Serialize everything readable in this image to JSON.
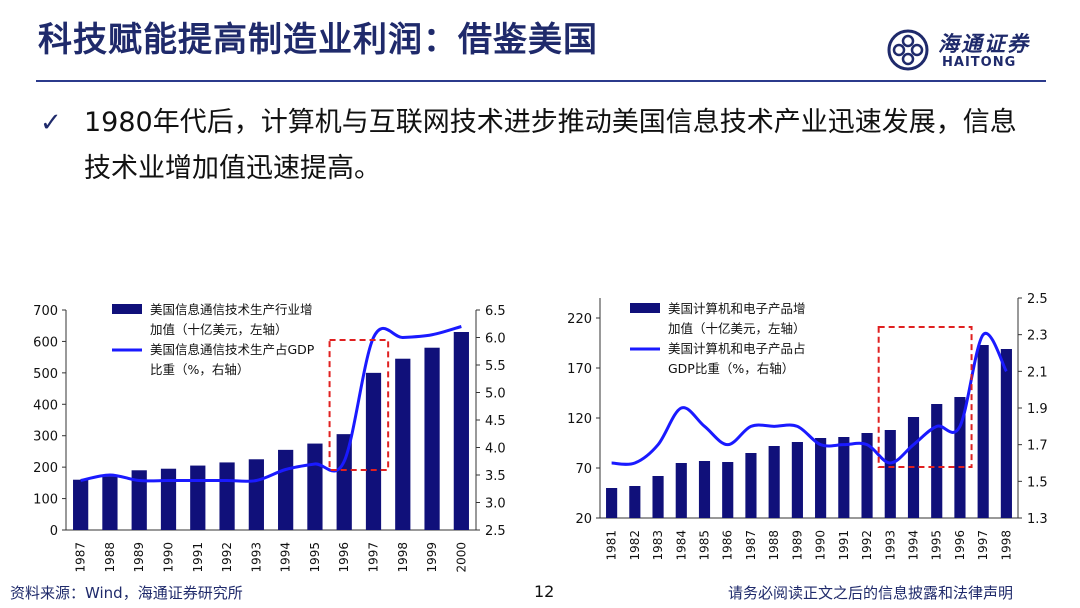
{
  "title": "科技赋能提高制造业利润：借鉴美国",
  "logo": {
    "cn": "海通证券",
    "en": "HAITONG",
    "icon": "haitong-logo-icon"
  },
  "bullet": {
    "icon": "check-icon",
    "text": "1980年代后，计算机与互联网技术进步推动美国信息技术产业迅速发展，信息技术业增加值迅速提高。"
  },
  "footer": {
    "source": "资料来源：Wind，海通证券研究所",
    "page": "12",
    "disclaimer": "请务必阅读正文之后的信息披露和法律声明"
  },
  "colors": {
    "accent": "#1f2a6b",
    "bar": "#10107a",
    "line": "#1a1aff",
    "highlight": "#e02020"
  },
  "chart_data": [
    {
      "type": "bar",
      "categories": [
        "1987",
        "1988",
        "1989",
        "1990",
        "1991",
        "1992",
        "1993",
        "1994",
        "1995",
        "1996",
        "1997",
        "1998",
        "1999",
        "2000"
      ],
      "series": [
        {
          "name": "美国信息通信技术生产行业增加值（十亿美元，左轴）",
          "type": "bar",
          "axis": "left",
          "values": [
            160,
            170,
            190,
            195,
            205,
            215,
            225,
            255,
            275,
            305,
            500,
            545,
            580,
            630
          ]
        },
        {
          "name": "美国信息通信技术生产占GDP比重（%，右轴）",
          "type": "line",
          "axis": "right",
          "values": [
            3.4,
            3.5,
            3.4,
            3.4,
            3.4,
            3.4,
            3.4,
            3.6,
            3.7,
            3.75,
            6.0,
            6.0,
            6.05,
            6.2
          ]
        }
      ],
      "legend_lines": [
        [
          "美国信息通信技术生产行业增",
          "加值（十亿美元，左轴）"
        ],
        [
          "美国信息通信技术生产占GDP",
          "比重（%，右轴）"
        ]
      ],
      "left_axis": {
        "min": 0,
        "max": 700,
        "ticks": [
          "0",
          "100",
          "200",
          "300",
          "400",
          "500",
          "600",
          "700"
        ]
      },
      "right_axis": {
        "min": 2.5,
        "max": 6.5,
        "ticks": [
          "2.5",
          "3.0",
          "3.5",
          "4.0",
          "4.5",
          "5.0",
          "5.5",
          "6.0",
          "6.5"
        ]
      },
      "highlight": [
        "1996",
        "1997"
      ],
      "legend": "top-left"
    },
    {
      "type": "bar",
      "categories": [
        "1981",
        "1982",
        "1983",
        "1984",
        "1985",
        "1986",
        "1987",
        "1988",
        "1989",
        "1990",
        "1991",
        "1992",
        "1993",
        "1994",
        "1995",
        "1996",
        "1997",
        "1998"
      ],
      "series": [
        {
          "name": "美国计算机和电子产品增加值（十亿美元，左轴）",
          "type": "bar",
          "axis": "left",
          "values": [
            50,
            52,
            62,
            75,
            77,
            76,
            85,
            92,
            96,
            100,
            101,
            105,
            108,
            121,
            134,
            141,
            193,
            189
          ]
        },
        {
          "name": "美国计算机和电子产品占GDP比重（%，右轴）",
          "type": "line",
          "axis": "right",
          "values": [
            1.6,
            1.6,
            1.7,
            1.9,
            1.8,
            1.7,
            1.8,
            1.8,
            1.8,
            1.7,
            1.7,
            1.7,
            1.6,
            1.7,
            1.8,
            1.8,
            2.3,
            2.1
          ]
        }
      ],
      "legend_lines": [
        [
          "美国计算机和电子产品增",
          "加值（十亿美元，左轴）"
        ],
        [
          "美国计算机和电子产品占",
          "GDP比重（%，右轴）"
        ]
      ],
      "left_axis": {
        "min": 20,
        "max": 240,
        "ticks": [
          "20",
          "70",
          "120",
          "170",
          "220"
        ],
        "tick_values": [
          20,
          70,
          120,
          170,
          220
        ]
      },
      "right_axis": {
        "min": 1.3,
        "max": 2.5,
        "ticks": [
          "1.3",
          "1.5",
          "1.7",
          "1.9",
          "2.1",
          "2.3",
          "2.5"
        ]
      },
      "highlight": [
        "1993",
        "1996"
      ],
      "legend": "top-left"
    }
  ]
}
